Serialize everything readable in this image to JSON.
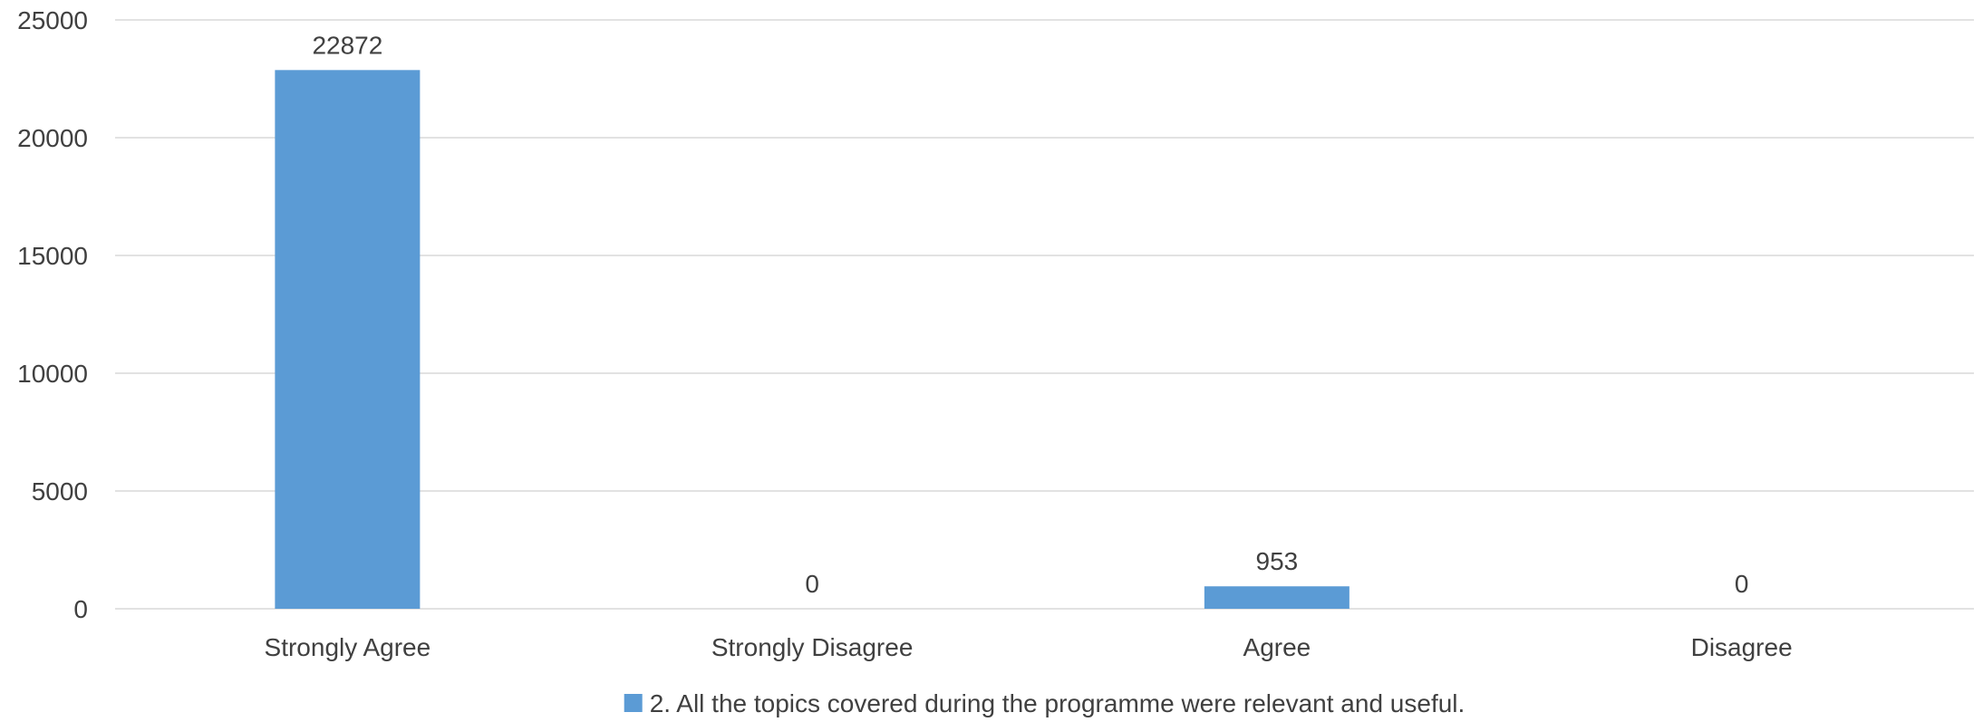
{
  "chart_data": {
    "type": "bar",
    "categories": [
      "Strongly Agree",
      "Strongly Disagree",
      "Agree",
      "Disagree"
    ],
    "series": [
      {
        "name": "2. All the topics covered during the programme were relevant and useful.",
        "values": [
          22872,
          0,
          953,
          0
        ],
        "color": "#5B9BD5"
      }
    ],
    "data_labels": [
      "22872",
      "0",
      "953",
      "0"
    ],
    "ylim": [
      0,
      25000
    ],
    "y_ticks": [
      0,
      5000,
      10000,
      15000,
      20000,
      25000
    ],
    "y_tick_labels": [
      "0",
      "5000",
      "10000",
      "15000",
      "20000",
      "25000"
    ],
    "grid": true,
    "gridline_color": "#D9D9D9",
    "legend_position": "bottom"
  }
}
